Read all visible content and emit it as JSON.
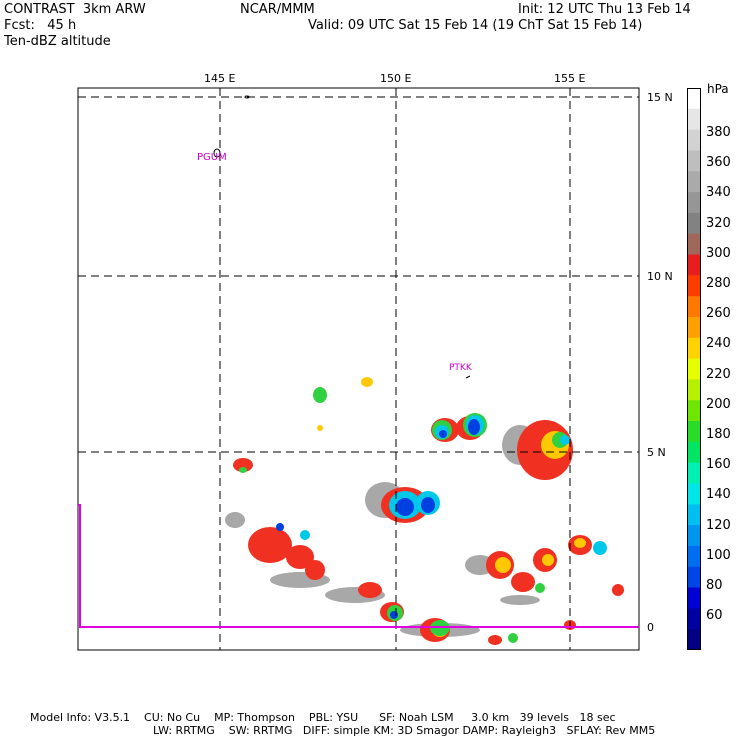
{
  "header": {
    "line1_left": "CONTRAST  3km ARW",
    "line1_center": "NCAR/MMM",
    "line1_right": "Init: 12 UTC Thu 13 Feb 14",
    "line2_left": "Fcst:   45 h",
    "line2_right": "Valid: 09 UTC Sat 15 Feb 14 (19 ChT Sat 15 Feb 14)",
    "line3_left": "Ten-dBZ altitude"
  },
  "map": {
    "lon_labels": [
      "145 E",
      "150 E",
      "155 E"
    ],
    "lat_labels": [
      "15 N",
      "10 N",
      "5 N",
      "0"
    ],
    "stations": [
      {
        "id": "PGUM",
        "label": "PGUM"
      },
      {
        "id": "PTKK",
        "label": "PTKK"
      }
    ]
  },
  "colorbar": {
    "unit": "hPa",
    "labels": [
      "380",
      "360",
      "340",
      "320",
      "300",
      "280",
      "260",
      "240",
      "220",
      "200",
      "180",
      "160",
      "140",
      "120",
      "100",
      "80",
      "60"
    ],
    "colors": [
      "#ffffff",
      "#e6e6e6",
      "#d2d2d2",
      "#bebebe",
      "#aaaaaa",
      "#969696",
      "#828282",
      "#a0685a",
      "#e61e1e",
      "#ff3c00",
      "#ff7800",
      "#ffa000",
      "#ffd200",
      "#e6ff00",
      "#b4f000",
      "#6ee600",
      "#28dc28",
      "#00e664",
      "#00f0b4",
      "#00e6e6",
      "#00bef0",
      "#0096f0",
      "#006ef0",
      "#0046e6",
      "#0000d2",
      "#0000a0",
      "#000080"
    ]
  },
  "footer": {
    "line1": "Model Info: V3.5.1    CU: No Cu    MP: Thompson    PBL: YSU      SF: Noah LSM     3.0 km   39 levels   18 sec",
    "line2": "LW: RRTMG    SW: RRTMG   DIFF: simple KM: 3D Smagor DAMP: Rayleigh3   SFLAY: Rev MM5"
  }
}
